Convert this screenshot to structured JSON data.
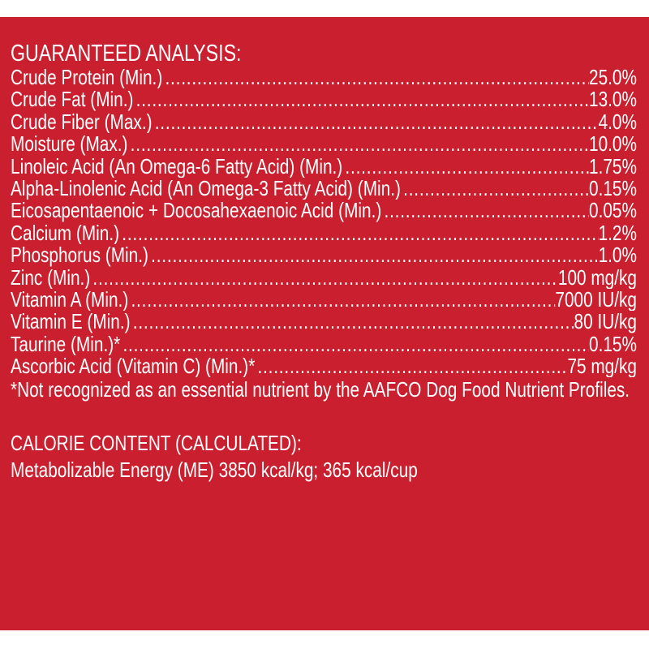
{
  "guaranteed_analysis": {
    "title": "GUARANTEED ANALYSIS:",
    "rows": [
      {
        "label": "Crude Protein (Min.)",
        "value": "25.0%"
      },
      {
        "label": "Crude Fat (Min.)",
        "value": "13.0%"
      },
      {
        "label": "Crude Fiber (Max.)",
        "value": "4.0%"
      },
      {
        "label": "Moisture (Max.)",
        "value": "10.0%"
      },
      {
        "label": "Linoleic Acid (An Omega-6 Fatty Acid) (Min.)",
        "value": "1.75%"
      },
      {
        "label": "Alpha-Linolenic Acid (An Omega-3 Fatty Acid) (Min.)",
        "value": "0.15%"
      },
      {
        "label": "Eicosapentaenoic + Docosahexaenoic Acid (Min.)",
        "value": "0.05%"
      },
      {
        "label": "Calcium (Min.)",
        "value": "1.2%"
      },
      {
        "label": "Phosphorus (Min.)",
        "value": "1.0%"
      },
      {
        "label": "Zinc (Min.)",
        "value": "100 mg/kg"
      },
      {
        "label": "Vitamin A (Min.)",
        "value": "7000 IU/kg"
      },
      {
        "label": "Vitamin E (Min.)",
        "value": "80 IU/kg"
      },
      {
        "label": "Taurine (Min.)*",
        "value": "0.15%"
      },
      {
        "label": "Ascorbic Acid (Vitamin C) (Min.)*",
        "value": "75 mg/kg"
      }
    ],
    "footnote": "*Not recognized as an essential nutrient by the AAFCO Dog Food Nutrient Profiles."
  },
  "calorie_content": {
    "title": "CALORIE CONTENT (CALCULATED):",
    "line": "Metabolizable Energy (ME) 3850 kcal/kg;  365 kcal/cup"
  },
  "colors": {
    "background": "#c91f2e",
    "text": "#ffffff"
  }
}
